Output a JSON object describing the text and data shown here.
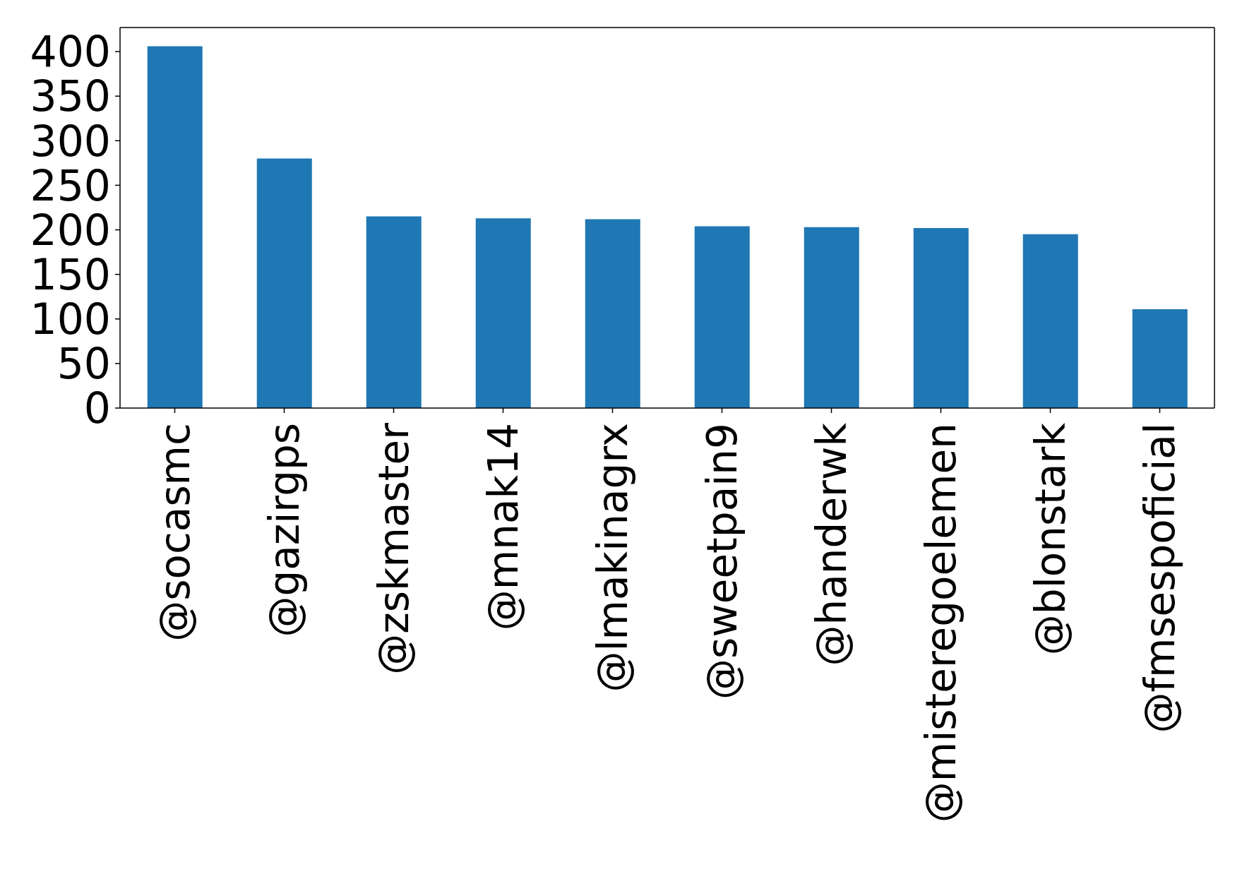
{
  "chart_data": {
    "type": "bar",
    "categories": [
      "@socasmc",
      "@gazirgps",
      "@zskmaster",
      "@mnak14",
      "@lmakinagrx",
      "@sweetpain9",
      "@handerwk",
      "@misteregoelemen",
      "@blonstark",
      "@fmsespoficial"
    ],
    "values": [
      406,
      280,
      215,
      213,
      212,
      204,
      203,
      202,
      195,
      111
    ],
    "color": "#1f77b4",
    "ylim": [
      0,
      427
    ],
    "yticks": [
      0,
      50,
      100,
      150,
      200,
      250,
      300,
      350,
      400
    ]
  }
}
